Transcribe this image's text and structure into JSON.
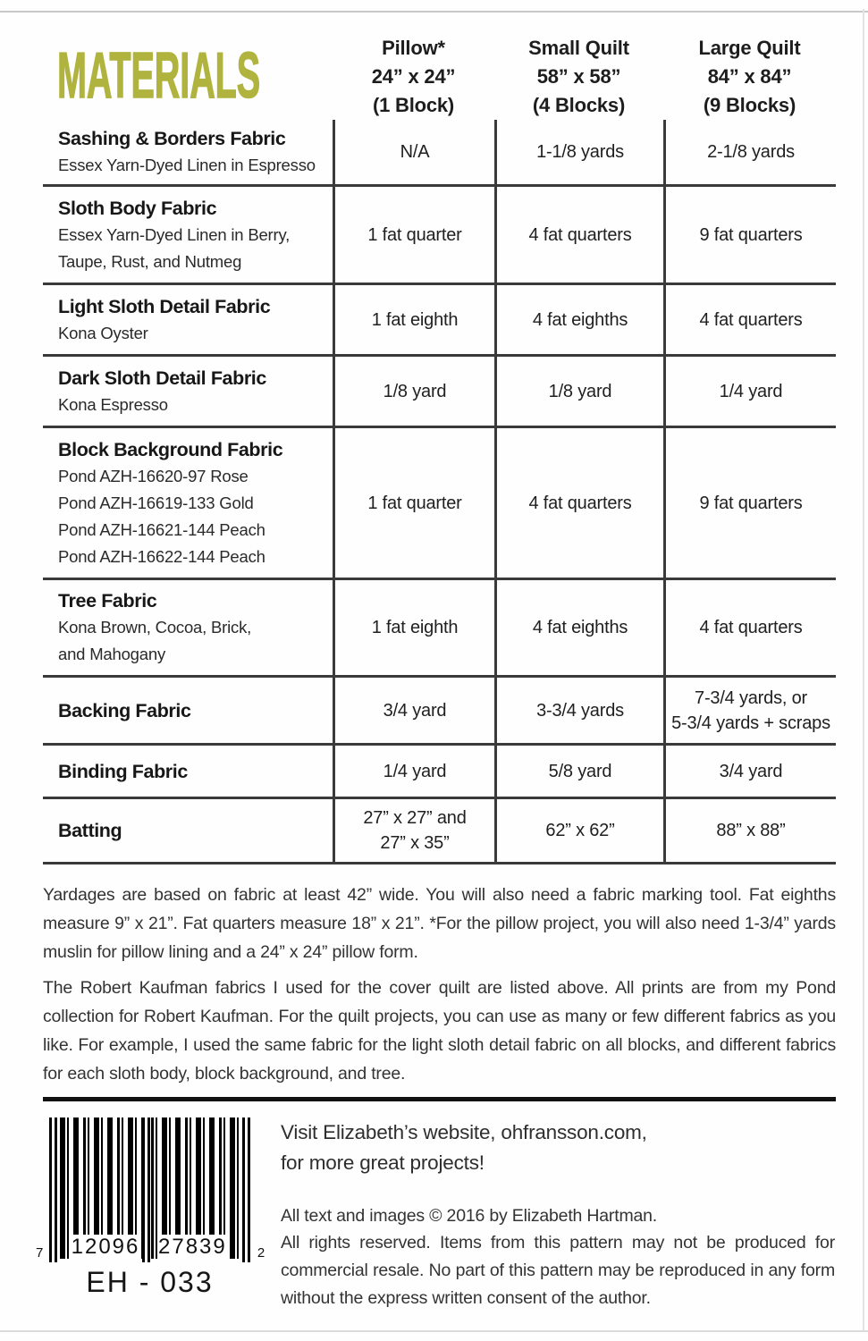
{
  "page": {
    "title": "MATERIALS",
    "accent_green": "#b0b43e"
  },
  "table": {
    "columns": [
      {
        "name": "Pillow*",
        "size": "24” x 24”",
        "blocks": "(1 Block)"
      },
      {
        "name": "Small Quilt",
        "size": "58” x 58”",
        "blocks": "(4 Blocks)"
      },
      {
        "name": "Large Quilt",
        "size": "84” x 84”",
        "blocks": "(9 Blocks)"
      }
    ],
    "rows": [
      {
        "material": "Sashing & Borders Fabric",
        "detail": "Essex Yarn-Dyed Linen in Espresso",
        "pillow": "N/A",
        "small": "1-1/8 yards",
        "large": "2-1/8 yards"
      },
      {
        "material": "Sloth Body Fabric",
        "detail": "Essex Yarn-Dyed Linen in Berry,\nTaupe, Rust, and Nutmeg",
        "pillow": "1 fat quarter",
        "small": "4 fat quarters",
        "large": "9 fat quarters"
      },
      {
        "material": "Light Sloth Detail Fabric",
        "detail": "Kona Oyster",
        "pillow": "1 fat eighth",
        "small": "4 fat eighths",
        "large": "4 fat quarters"
      },
      {
        "material": "Dark Sloth Detail Fabric",
        "detail": "Kona Espresso",
        "pillow": "1/8 yard",
        "small": "1/8 yard",
        "large": "1/4 yard"
      },
      {
        "material": "Block Background Fabric",
        "detail": "Pond AZH-16620-97 Rose\nPond AZH-16619-133  Gold\nPond AZH-16621-144 Peach\nPond AZH-16622-144 Peach",
        "pillow": "1 fat quarter",
        "small": "4 fat quarters",
        "large": "9 fat quarters"
      },
      {
        "material": "Tree Fabric",
        "detail": "Kona Brown, Cocoa, Brick,\nand Mahogany",
        "pillow": "1 fat eighth",
        "small": "4 fat eighths",
        "large": "4 fat quarters"
      },
      {
        "material": "Backing Fabric",
        "detail": "",
        "pillow": "3/4 yard",
        "small": "3-3/4 yards",
        "large": "7-3/4 yards, or\n5-3/4 yards + scraps"
      },
      {
        "material": "Binding Fabric",
        "detail": "",
        "pillow": "1/4 yard",
        "small": "5/8 yard",
        "large": "3/4 yard"
      },
      {
        "material": "Batting",
        "detail": "",
        "pillow": "27” x 27” and\n27” x 35”",
        "small": "62” x 62”",
        "large": "88” x 88”"
      }
    ]
  },
  "notes": {
    "yardage_note": "Yardages are based on fabric at least 42” wide. You will also need a fabric marking tool. Fat eighths measure 9” x 21”. Fat quarters measure 18” x 21”. *For the pillow project, you will also need 1-3/4” yards muslin for pillow lining and a 24” x 24” pillow form.",
    "fabric_note": "The Robert Kaufman fabrics I used for the cover quilt are listed above. All prints are from my Pond collection for Robert Kaufman.  For the quilt projects, you can use as many or few different fabrics as you like. For example, I used the same fabric for the light sloth detail fabric on all blocks, and different fabrics for each sloth body, block background, and tree."
  },
  "footer": {
    "website": "Visit Elizabeth’s website, ohfransson.com,\nfor more great projects!",
    "copyright": "All text and images © 2016 by Elizabeth Hartman.",
    "rights": "All rights reserved. Items from this pattern may not be produced for commercial resale. No part of this pattern may be reproduced in any form without the express written consent of the author.",
    "barcode": {
      "left_digit": "7",
      "group1": "12096",
      "group2": "27839",
      "right_digit": "2",
      "code": "EH - 033"
    }
  }
}
